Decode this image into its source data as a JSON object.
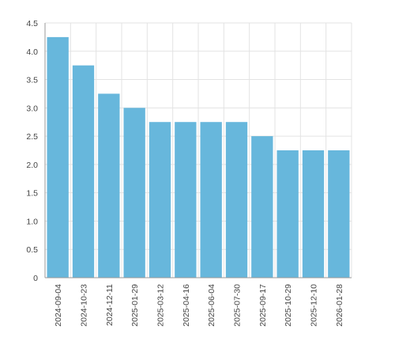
{
  "chart_data": {
    "type": "bar",
    "categories": [
      "2024-09-04",
      "2024-10-23",
      "2024-12-11",
      "2025-01-29",
      "2025-03-12",
      "2025-04-16",
      "2025-06-04",
      "2025-07-30",
      "2025-09-17",
      "2025-10-29",
      "2025-12-10",
      "2026-01-28"
    ],
    "values": [
      4.25,
      3.75,
      3.25,
      3.0,
      2.75,
      2.75,
      2.75,
      2.75,
      2.5,
      2.25,
      2.25,
      2.25
    ],
    "ylim": [
      0,
      4.5
    ],
    "yticks": [
      "0",
      "0.5",
      "1.0",
      "1.5",
      "2.0",
      "2.5",
      "3.0",
      "3.5",
      "4.0",
      "4.5"
    ],
    "grid": true,
    "bar_color": "#67b7dc",
    "title": "",
    "xlabel": "",
    "ylabel": ""
  }
}
